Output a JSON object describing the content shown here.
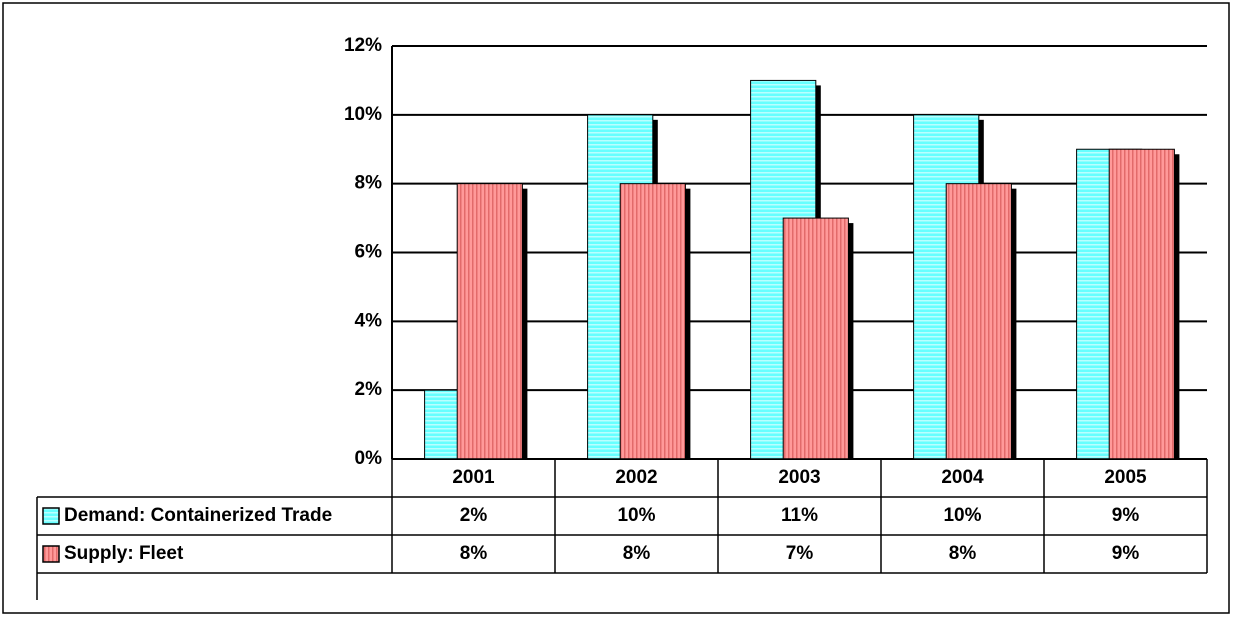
{
  "chart_data": {
    "type": "bar",
    "categories": [
      "2001",
      "2002",
      "2003",
      "2004",
      "2005"
    ],
    "series": [
      {
        "name": "Demand: Containerized Trade",
        "color": "#66ffff",
        "values": [
          2,
          10,
          11,
          10,
          9
        ],
        "value_labels": [
          "2%",
          "10%",
          "11%",
          "10%",
          "9%"
        ]
      },
      {
        "name": "Supply: Fleet",
        "color": "#ff9999",
        "values": [
          8,
          8,
          7,
          8,
          9
        ],
        "value_labels": [
          "8%",
          "8%",
          "7%",
          "8%",
          "9%"
        ]
      }
    ],
    "ylim": [
      0,
      12
    ],
    "yticks": [
      {
        "value": 0,
        "label": "0%"
      },
      {
        "value": 2,
        "label": "2%"
      },
      {
        "value": 4,
        "label": "4%"
      },
      {
        "value": 6,
        "label": "6%"
      },
      {
        "value": 8,
        "label": "8%"
      },
      {
        "value": 10,
        "label": "10%"
      },
      {
        "value": 12,
        "label": "12%"
      }
    ],
    "grid": true,
    "data_table": true
  }
}
